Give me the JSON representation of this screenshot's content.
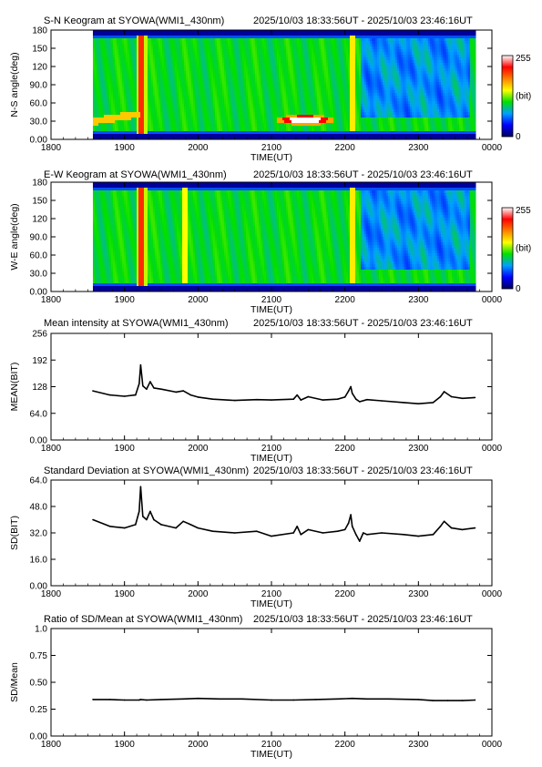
{
  "figure": {
    "station": "SYOWA(WMI1_430nm)",
    "time_range": "2025/10/03 18:33:56UT - 2025/10/03 23:46:16UT"
  },
  "colorbar": {
    "max_label": "255",
    "unit_label": "(bit)",
    "min_label": "0",
    "colors": [
      "#000060",
      "#0000ff",
      "#00a0ff",
      "#00e000",
      "#ffff00",
      "#ff8000",
      "#ff0000",
      "#ffffff"
    ]
  },
  "chart_data": [
    {
      "type": "heatmap",
      "title": "S-N Keogram at SYOWA(WMI1_430nm)",
      "xlabel": "TIME(UT)",
      "ylabel": "N-S angle(deg)",
      "x_ticks": [
        "1800",
        "1900",
        "2000",
        "2100",
        "2200",
        "2300",
        "0000"
      ],
      "y_ticks": [
        "0.00",
        "30.0",
        "60.0",
        "90.0",
        "120",
        "150",
        "180"
      ],
      "ylim": [
        0,
        180
      ],
      "x_coverage_hours": [
        18.57,
        23.77
      ],
      "dominant_level": "green (~110 bit)",
      "features": [
        {
          "time_hours": 19.22,
          "angle_range": [
            20,
            180
          ],
          "level": "red/yellow"
        },
        {
          "time_hours": 21.5,
          "angle_range": [
            25,
            40
          ],
          "level": "white (saturated)"
        },
        {
          "time_hours": 22.1,
          "angle_range": [
            20,
            180
          ],
          "level": "orange/yellow"
        },
        {
          "time_range_hours": [
            22.2,
            23.7
          ],
          "angle_range": [
            40,
            170
          ],
          "level": "blue/cyan (dim)"
        }
      ]
    },
    {
      "type": "heatmap",
      "title": "E-W Keogram at SYOWA(WMI1_430nm)",
      "xlabel": "TIME(UT)",
      "ylabel": "W-E angle(deg)",
      "x_ticks": [
        "1800",
        "1900",
        "2000",
        "2100",
        "2200",
        "2300",
        "0000"
      ],
      "y_ticks": [
        "0.00",
        "30.0",
        "60.0",
        "90.0",
        "120",
        "150",
        "180"
      ],
      "ylim": [
        0,
        180
      ],
      "x_coverage_hours": [
        18.57,
        23.77
      ],
      "dominant_level": "green (~110 bit)",
      "features": [
        {
          "time_hours": 19.22,
          "angle_range": [
            10,
            175
          ],
          "level": "red/yellow"
        },
        {
          "time_hours": 19.8,
          "angle_range": [
            10,
            175
          ],
          "level": "yellow"
        },
        {
          "time_hours": 22.1,
          "angle_range": [
            10,
            175
          ],
          "level": "yellow"
        },
        {
          "time_range_hours": [
            22.2,
            23.7
          ],
          "angle_range": [
            20,
            170
          ],
          "level": "blue/cyan (dim)"
        }
      ]
    },
    {
      "type": "line",
      "title": "Mean intensity at SYOWA(WMI1_430nm)",
      "xlabel": "TIME(UT)",
      "ylabel": "MEAN(BIT)",
      "x_ticks": [
        "1800",
        "1900",
        "2000",
        "2100",
        "2200",
        "2300",
        "0000"
      ],
      "y_ticks": [
        "0.00",
        "64.0",
        "128",
        "192",
        "256"
      ],
      "ylim": [
        0,
        256
      ],
      "x": [
        18.57,
        18.8,
        19.0,
        19.15,
        19.2,
        19.22,
        19.25,
        19.3,
        19.35,
        19.4,
        19.5,
        19.7,
        19.8,
        19.9,
        20.0,
        20.2,
        20.5,
        20.8,
        21.0,
        21.3,
        21.35,
        21.4,
        21.5,
        21.7,
        21.9,
        22.0,
        22.05,
        22.08,
        22.1,
        22.15,
        22.2,
        22.3,
        22.5,
        22.8,
        23.0,
        23.2,
        23.3,
        23.35,
        23.45,
        23.6,
        23.77
      ],
      "y": [
        118,
        108,
        105,
        108,
        135,
        180,
        130,
        122,
        140,
        125,
        122,
        115,
        118,
        108,
        103,
        98,
        95,
        97,
        96,
        98,
        108,
        96,
        104,
        96,
        98,
        103,
        118,
        128,
        112,
        98,
        92,
        97,
        94,
        90,
        87,
        90,
        104,
        116,
        104,
        100,
        102
      ]
    },
    {
      "type": "line",
      "title": "Standard Deviation at SYOWA(WMI1_430nm)",
      "xlabel": "TIME(UT)",
      "ylabel": "SD(BIT)",
      "x_ticks": [
        "1800",
        "1900",
        "2000",
        "2100",
        "2200",
        "2300",
        "0000"
      ],
      "y_ticks": [
        "0.00",
        "16.0",
        "32.0",
        "48.0",
        "64.0"
      ],
      "ylim": [
        0,
        64
      ],
      "x": [
        18.57,
        18.8,
        19.0,
        19.15,
        19.2,
        19.22,
        19.25,
        19.3,
        19.35,
        19.4,
        19.5,
        19.7,
        19.8,
        19.9,
        20.0,
        20.2,
        20.5,
        20.8,
        21.0,
        21.3,
        21.35,
        21.4,
        21.5,
        21.7,
        21.9,
        22.0,
        22.05,
        22.08,
        22.1,
        22.15,
        22.2,
        22.25,
        22.3,
        22.5,
        22.8,
        23.0,
        23.2,
        23.3,
        23.35,
        23.45,
        23.6,
        23.77
      ],
      "y": [
        40,
        36,
        35,
        37,
        45,
        60,
        42,
        40,
        45,
        40,
        37,
        35,
        39,
        37,
        35,
        33,
        32,
        33,
        30,
        32,
        36,
        31,
        34,
        32,
        33,
        34,
        38,
        43,
        36,
        31,
        27,
        32,
        31,
        32,
        31,
        30,
        31,
        36,
        39,
        35,
        34,
        35
      ]
    },
    {
      "type": "line",
      "title": "Ratio of SD/Mean at SYOWA(WMI1_430nm)",
      "xlabel": "TIME(UT)",
      "ylabel": "SD/Mean",
      "x_ticks": [
        "1800",
        "1900",
        "2000",
        "2100",
        "2200",
        "2300",
        "0000"
      ],
      "y_ticks": [
        "0.00",
        "0.25",
        "0.50",
        "0.75",
        "1.0"
      ],
      "ylim": [
        0,
        1
      ],
      "x": [
        18.57,
        18.8,
        19.0,
        19.2,
        19.22,
        19.3,
        19.5,
        19.8,
        20.0,
        20.3,
        20.6,
        21.0,
        21.3,
        21.6,
        21.9,
        22.1,
        22.3,
        22.6,
        23.0,
        23.2,
        23.4,
        23.6,
        23.77
      ],
      "y": [
        0.34,
        0.34,
        0.335,
        0.335,
        0.34,
        0.335,
        0.34,
        0.345,
        0.35,
        0.345,
        0.345,
        0.335,
        0.335,
        0.34,
        0.345,
        0.35,
        0.345,
        0.345,
        0.34,
        0.33,
        0.33,
        0.33,
        0.335
      ]
    }
  ]
}
